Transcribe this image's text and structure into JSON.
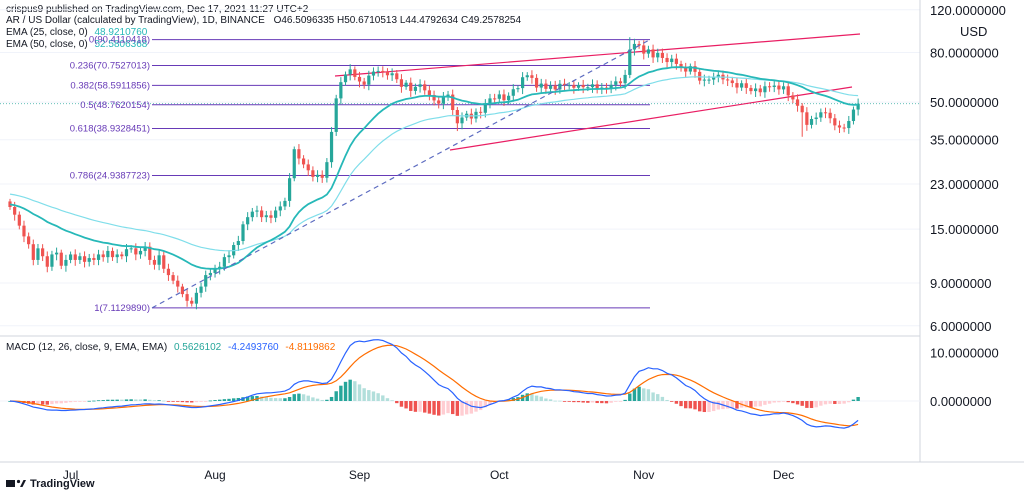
{
  "header": {
    "published": "crispus9 published on TradingView.com, Dec 17, 2021 11:27 UTC+2",
    "symbol": "AR / US Dollar (calculated by TradingView), 1D, BINANCE",
    "ohlc": "O46.5096335 H50.6710513 L44.4792634 C49.2578254",
    "ema25_label": "EMA (25, close, 0)",
    "ema25_value": "48.9210760",
    "ema50_label": "EMA (50, close, 0)",
    "ema50_value": "52.5806368",
    "macd_label": "MACD (12, 26, close, 9, EMA, EMA)",
    "macd_hist": "0.5626102",
    "macd_line": "-4.2493760",
    "macd_signal": "-4.8119862"
  },
  "price_axis": {
    "currency": "USD",
    "ticks": [
      "120.0000000",
      "80.0000000",
      "50.0000000",
      "35.0000000",
      "23.0000000",
      "15.0000000",
      "9.0000000",
      "6.0000000"
    ],
    "tick_values": [
      120,
      80,
      50,
      35,
      23,
      15,
      9,
      6
    ]
  },
  "macd_axis": {
    "ticks": [
      "10.0000000",
      "0.0000000"
    ],
    "tick_values": [
      10,
      0
    ]
  },
  "time_axis": {
    "labels": [
      "Jul",
      "Aug",
      "Sep",
      "Oct",
      "Nov",
      "Dec"
    ]
  },
  "footer": {
    "brand": "TradingView"
  },
  "colors": {
    "up": "#26a69a",
    "down": "#ef5350",
    "ema25": "#26b8b8",
    "ema50": "#80deea",
    "fib": "#673ab7",
    "channel": "#e91e63",
    "macd": "#2962ff",
    "signal": "#ff6d00",
    "hist_up_strong": "#26a69a",
    "hist_up_weak": "#b2dfdb",
    "hist_down_strong": "#ef5350",
    "hist_down_weak": "#ffcdd2"
  },
  "fib_levels": [
    {
      "ratio": 0,
      "price": 90.4110418,
      "label": "0(90.4110418)"
    },
    {
      "ratio": 0.236,
      "price": 70.7527013,
      "label": "0.236(70.7527013)"
    },
    {
      "ratio": 0.382,
      "price": 58.5911856,
      "label": "0.382(58.5911856)"
    },
    {
      "ratio": 0.5,
      "price": 48.7620154,
      "label": "0.5(48.7620154)"
    },
    {
      "ratio": 0.618,
      "price": 38.9328451,
      "label": "0.618(38.9328451)"
    },
    {
      "ratio": 0.786,
      "price": 24.9387723,
      "label": "0.786(24.9387723)"
    },
    {
      "ratio": 1,
      "price": 7.112989,
      "label": "1(7.1129890)"
    }
  ],
  "chart_data": {
    "type": "candlestick",
    "scale": "log",
    "ylim": [
      5.5,
      130
    ],
    "x_start": "2021-06-18",
    "x_end": "2021-12-17",
    "last_price": 49.2578254,
    "closes": [
      18.5,
      17.2,
      15.5,
      14.0,
      13.0,
      11.2,
      12.5,
      11.6,
      10.5,
      11.8,
      12.0,
      10.6,
      11.2,
      11.8,
      11.2,
      11.6,
      11.0,
      11.4,
      11.2,
      11.8,
      11.5,
      12.2,
      11.5,
      11.8,
      11.6,
      12.4,
      12.5,
      11.8,
      12.2,
      12.7,
      11.2,
      10.7,
      11.7,
      10.3,
      9.7,
      9.2,
      8.7,
      8.1,
      7.6,
      7.4,
      8.2,
      8.7,
      9.7,
      9.9,
      10.3,
      10.5,
      11.5,
      11.7,
      12.9,
      13.4,
      15.7,
      16.8,
      17.7,
      17.9,
      16.8,
      17.1,
      16.7,
      17.9,
      18.6,
      19.6,
      24.3,
      32.0,
      29.3,
      27.7,
      26.2,
      24.6,
      25.1,
      24.4,
      28.3,
      37.7,
      51.8,
      60.4,
      65.0,
      68.2,
      63.5,
      60.8,
      59.0,
      64.3,
      66.8,
      67.2,
      66.5,
      64.5,
      65.7,
      62.1,
      57.8,
      60.1,
      55.6,
      57.8,
      59.2,
      55.9,
      53.5,
      50.8,
      49.3,
      52.6,
      53.7,
      46.4,
      40.9,
      43.2,
      44.8,
      42.8,
      45.6,
      45.2,
      49.5,
      51.8,
      51.6,
      53.8,
      50.9,
      53.1,
      56.5,
      57.1,
      63.3,
      64.5,
      62.9,
      57.4,
      59.6,
      56.7,
      58.5,
      56.4,
      59.5,
      58.4,
      58.7,
      57.3,
      58.8,
      57.6,
      57.6,
      59.2,
      56.7,
      57.4,
      56.9,
      58.9,
      60.9,
      59.8,
      64.7,
      82.3,
      86.8,
      85.6,
      79.2,
      82.4,
      76.4,
      79.7,
      76.0,
      73.1,
      75.5,
      71.8,
      69.1,
      66.8,
      70.3,
      66.6,
      61.3,
      61.9,
      61.9,
      63.3,
      64.8,
      62.0,
      61.4,
      59.9,
      57.4,
      59.8,
      57.2,
      55.5,
      56.9,
      54.9,
      58.1,
      57.7,
      58.5,
      56.4,
      58.1,
      53.3,
      51.3,
      48.3,
      45.4,
      40.3,
      42.6,
      43.2,
      45.4,
      45.2,
      42.9,
      40.1,
      39.3,
      39.1,
      41.8,
      46.6,
      49.26
    ]
  }
}
